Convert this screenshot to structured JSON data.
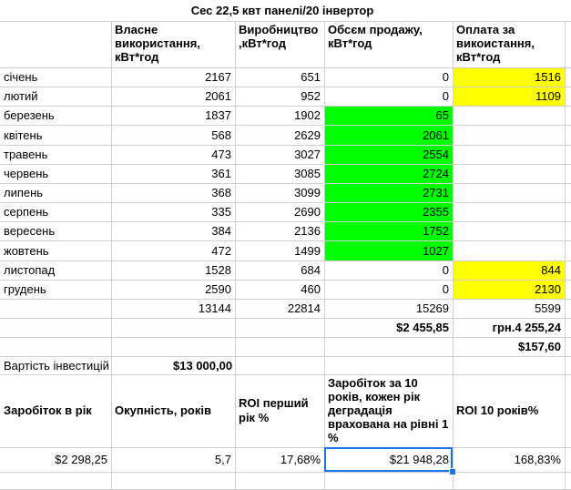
{
  "title": "Сес 22,5 квт панелі/20 інвертор",
  "headers": {
    "own_use": "Власне використання, кВт*год",
    "production": "Виробництво ,кВт*год",
    "sale": "Обсєм продажу, кВт*год",
    "payment": "Оплата за викоистання, кВт*год"
  },
  "months": [
    {
      "name": "січень",
      "own": "2167",
      "prod": "651",
      "sale": "0",
      "pay": "1516",
      "sale_hl": "",
      "pay_hl": "yellow"
    },
    {
      "name": "лютий",
      "own": "2061",
      "prod": "952",
      "sale": "0",
      "pay": "1109",
      "sale_hl": "",
      "pay_hl": "yellow"
    },
    {
      "name": "березень",
      "own": "1837",
      "prod": "1902",
      "sale": "65",
      "pay": "",
      "sale_hl": "green",
      "pay_hl": ""
    },
    {
      "name": "квітень",
      "own": "568",
      "prod": "2629",
      "sale": "2061",
      "pay": "",
      "sale_hl": "green",
      "pay_hl": ""
    },
    {
      "name": "травень",
      "own": "473",
      "prod": "3027",
      "sale": "2554",
      "pay": "",
      "sale_hl": "green",
      "pay_hl": ""
    },
    {
      "name": "червень",
      "own": "361",
      "prod": "3085",
      "sale": "2724",
      "pay": "",
      "sale_hl": "green",
      "pay_hl": ""
    },
    {
      "name": "липень",
      "own": "368",
      "prod": "3099",
      "sale": "2731",
      "pay": "",
      "sale_hl": "green",
      "pay_hl": ""
    },
    {
      "name": "серпень",
      "own": "335",
      "prod": "2690",
      "sale": "2355",
      "pay": "",
      "sale_hl": "green",
      "pay_hl": ""
    },
    {
      "name": "вересень",
      "own": "384",
      "prod": "2136",
      "sale": "1752",
      "pay": "",
      "sale_hl": "green",
      "pay_hl": ""
    },
    {
      "name": "жовтень",
      "own": "472",
      "prod": "1499",
      "sale": "1027",
      "pay": "",
      "sale_hl": "green",
      "pay_hl": ""
    },
    {
      "name": "листопад",
      "own": "1528",
      "prod": "684",
      "sale": "0",
      "pay": "844",
      "sale_hl": "",
      "pay_hl": "yellow"
    },
    {
      "name": "грудень",
      "own": "2590",
      "prod": "460",
      "sale": "0",
      "pay": "2130",
      "sale_hl": "",
      "pay_hl": "yellow"
    }
  ],
  "totals": {
    "own": "13144",
    "prod": "22814",
    "sale": "15269",
    "pay": "5599"
  },
  "money": {
    "sale_usd": "$2 455,85",
    "pay_uah": "грн.4 255,24",
    "pay_usd": "$157,60"
  },
  "investment": {
    "label": "Вартість інвестицій",
    "value": "$13 000,00"
  },
  "summary": {
    "headers": {
      "yearly": "Заробіток в рік",
      "payback": "Окупність, років",
      "roi_first": "ROI перший рік %",
      "earn10": "Заробіток за 10 років, кожен рік деградація врахована на рівні 1 %",
      "roi10": "ROI 10 років%"
    },
    "values": {
      "yearly": "$2 298,25",
      "payback": "5,7",
      "roi_first": "17,68%",
      "earn10": "$21 948,28",
      "roi10": "168,83%"
    }
  }
}
